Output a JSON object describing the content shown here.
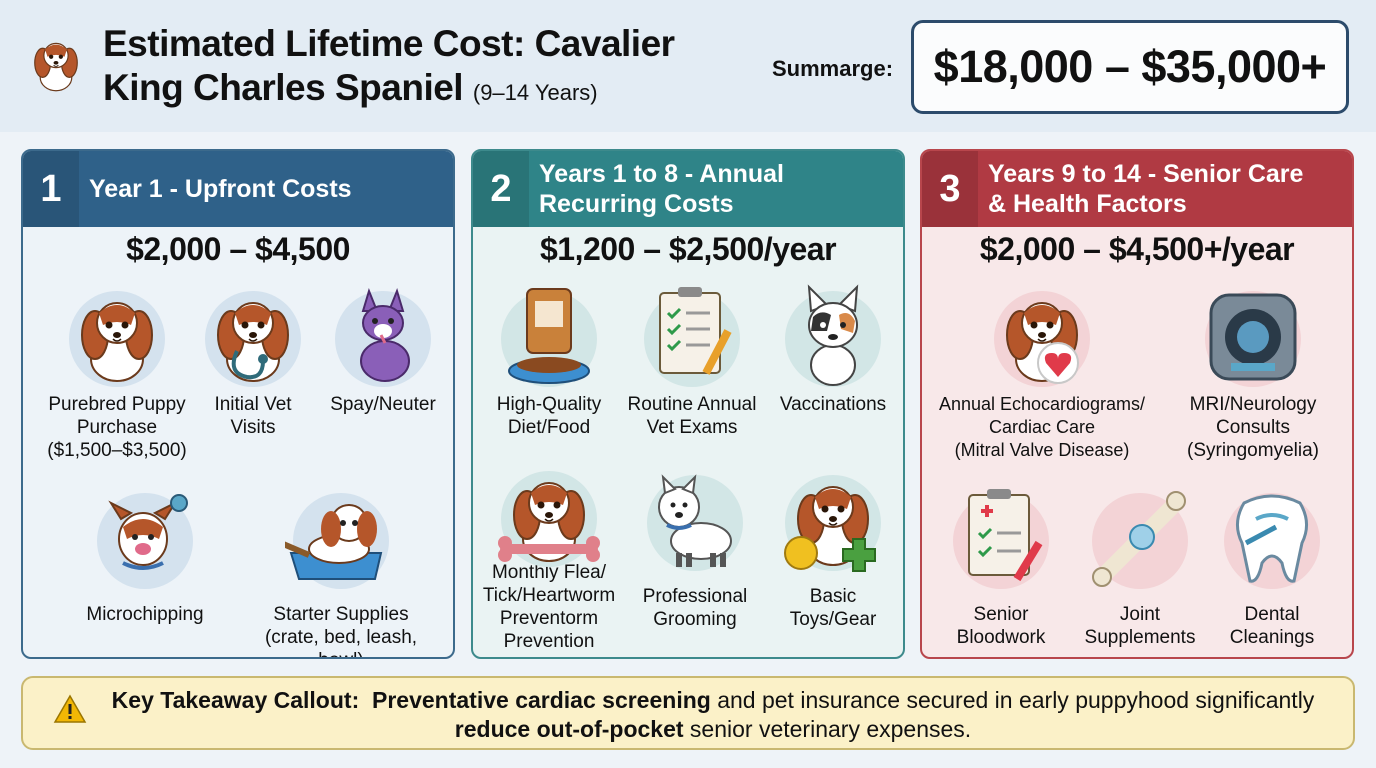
{
  "header": {
    "title": "Estimated Lifetime Cost: Cavalier King Charles Spaniel",
    "title_suffix": "(9–14 Years)",
    "summary_label": "Summarge:",
    "summary_value": "$18,000 – $35,000+"
  },
  "panels": [
    {
      "number": "1",
      "title": "Year 1 - Upfront Costs",
      "range": "$2,000 – $4,500",
      "items": [
        {
          "label": "Purebred Puppy Purchase",
          "note": "($1,500–$3,500)",
          "icon": "puppy-icon"
        },
        {
          "label": "Initial Vet Visits",
          "icon": "stethoscope-dog-icon"
        },
        {
          "label": "Spay/Neuter",
          "icon": "purple-dog-icon"
        },
        {
          "label": "Microchipping",
          "icon": "microchip-dog-icon"
        },
        {
          "label": "Starter Supplies",
          "note": "(crate, bed, leash, bowl)",
          "icon": "dog-bed-icon"
        }
      ]
    },
    {
      "number": "2",
      "title": "Years 1 to 8 - Annual Recurring Costs",
      "range": "$1,200 – $2,500/year",
      "items": [
        {
          "label": "High-Quality Diet/Food",
          "icon": "food-bag-icon"
        },
        {
          "label": "Routine Annual Vet Exams",
          "icon": "clipboard-icon"
        },
        {
          "label": "Vaccinations",
          "icon": "french-bulldog-icon"
        },
        {
          "label": "Monthly Flea/ Tick/Heartworm Preventorm Prevention",
          "icon": "dog-bone-icon"
        },
        {
          "label": "Professional Grooming",
          "icon": "white-dog-icon"
        },
        {
          "label": "Basic Toys/Gear",
          "icon": "toys-icon"
        }
      ]
    },
    {
      "number": "3",
      "title": "Years 9 to 14 - Senior Care & Health Factors",
      "range": "$2,000 – $4,500+/year",
      "items": [
        {
          "label": "Annual Echocardiograms/ Cardiac Care",
          "note": "(Mitral Valve Disease)",
          "icon": "heart-dog-icon"
        },
        {
          "label": "MRI/Neurology Consults",
          "note": "(Syringomyelia)",
          "icon": "mri-scanner-icon"
        },
        {
          "label": "Senior Bloodwork",
          "icon": "medical-clipboard-icon"
        },
        {
          "label": "Joint Supplements",
          "icon": "bone-joint-icon"
        },
        {
          "label": "Dental Cleanings",
          "icon": "tooth-icon"
        }
      ]
    }
  ],
  "callout": {
    "lead": "Key Takeaway Callout:",
    "bold1": "Preventative cardiac screening",
    "text1": "and pet insurance secured in early puppyhood significantly",
    "bold2": "reduce out-of-pocket",
    "text2": "senior veterinary expenses."
  },
  "colors": {
    "panel1": "#2f6189",
    "panel2": "#2f8488",
    "panel3": "#b03a43",
    "callout_bg": "#fbf1c8"
  }
}
